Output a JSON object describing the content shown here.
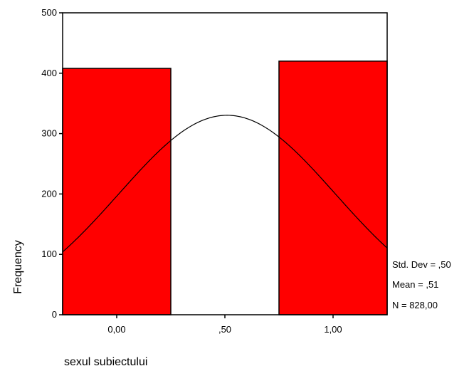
{
  "chart_data": {
    "type": "bar",
    "subtype": "histogram-with-normal-curve",
    "categories": [
      "0,00",
      "1,00"
    ],
    "values": [
      408,
      420
    ],
    "bars": [
      {
        "x_start": -0.25,
        "x_end": 0.25,
        "value": 408
      },
      {
        "x_start": 0.75,
        "x_end": 1.25,
        "value": 420
      }
    ],
    "bar_color": "#ff0000",
    "curve": {
      "type": "normal",
      "mean": 0.51,
      "sd": 0.5,
      "n": 828,
      "bin_width": 0.5
    },
    "x_ticks": [
      {
        "value": 0,
        "label": "0,00"
      },
      {
        "value": 0.5,
        "label": ",50"
      },
      {
        "value": 1,
        "label": "1,00"
      }
    ],
    "y_ticks": [
      0,
      100,
      200,
      300,
      400,
      500
    ],
    "xlim": [
      -0.25,
      1.25
    ],
    "ylim": [
      0,
      500
    ],
    "xlabel": "sexul subiectului",
    "ylabel": "Frequency",
    "grid": false,
    "stats": {
      "std_dev": "Std. Dev = ,50",
      "mean": "Mean = ,51",
      "n": "N = 828,00"
    }
  }
}
